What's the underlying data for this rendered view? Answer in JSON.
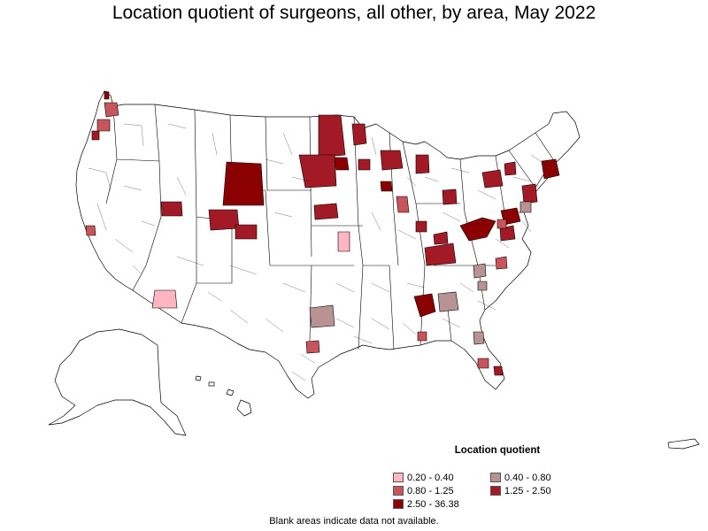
{
  "title": "Location quotient of surgeons, all other, by area, May 2022",
  "legend": {
    "title": "Location quotient",
    "items": [
      {
        "label": "0.20 - 0.40",
        "color": "#ffb6c1"
      },
      {
        "label": "0.40 - 0.80",
        "color": "#b99393"
      },
      {
        "label": "0.80 - 1.25",
        "color": "#c8545c"
      },
      {
        "label": "1.25 - 2.50",
        "color": "#a21a26"
      },
      {
        "label": "2.50 - 36.38",
        "color": "#8b0000"
      }
    ]
  },
  "footnote": "Blank areas indicate data not available.",
  "colors": {
    "boundary": "#000000",
    "no_data": "#ffffff"
  }
}
